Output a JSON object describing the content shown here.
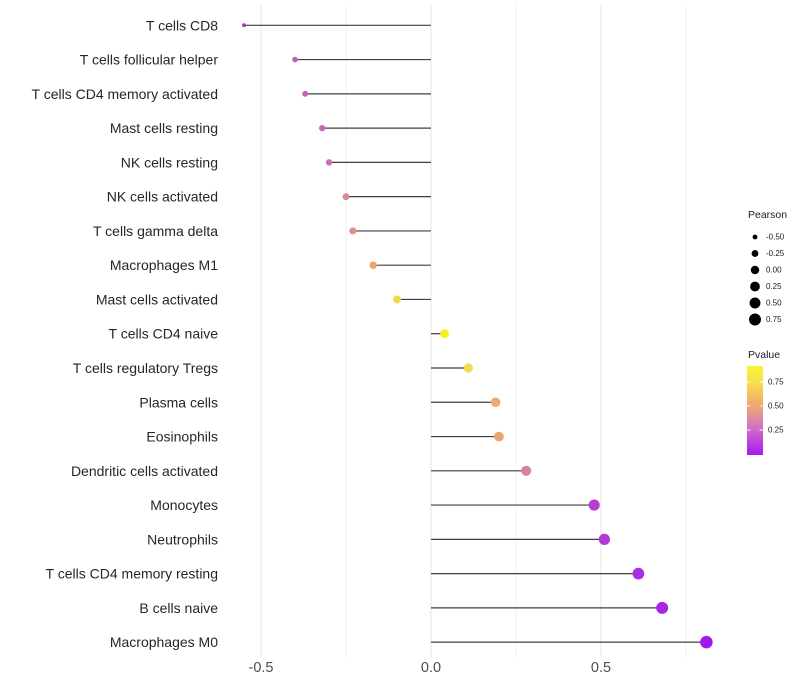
{
  "chart_data": {
    "type": "lollipop",
    "title": "",
    "xlabel": "",
    "ylabel": "",
    "xlim": [
      -0.65,
      0.92
    ],
    "grid": true,
    "gridline_values": [
      -0.5,
      -0.25,
      0.0,
      0.25,
      0.5,
      0.75
    ],
    "x_axis": {
      "tick_values": [
        -0.5,
        0.0,
        0.5
      ],
      "tick_labels": [
        "-0.5",
        "0.0",
        "0.5"
      ]
    },
    "categories": [
      "T cells CD8",
      "T cells follicular helper",
      "T cells CD4 memory activated",
      "Mast cells resting",
      "NK cells resting",
      "NK cells activated",
      "T cells gamma delta",
      "Macrophages M1",
      "Mast cells activated",
      "T cells CD4 naive",
      "T cells regulatory  Tregs",
      "Plasma cells",
      "Eosinophils",
      "Dendritic cells activated",
      "Monocytes",
      "Neutrophils",
      "T cells CD4 memory resting",
      "B cells naive",
      "Macrophages M0"
    ],
    "series": [
      {
        "name": "Pearson",
        "values": [
          -0.55,
          -0.4,
          -0.37,
          -0.32,
          -0.3,
          -0.25,
          -0.23,
          -0.17,
          -0.1,
          0.04,
          0.11,
          0.19,
          0.2,
          0.28,
          0.48,
          0.51,
          0.61,
          0.68,
          0.81
        ]
      }
    ],
    "points": [
      {
        "label": "T cells CD8",
        "pearson": -0.55,
        "dot_color": "#9c44c0"
      },
      {
        "label": "T cells follicular helper",
        "pearson": -0.4,
        "dot_color": "#c05dc3"
      },
      {
        "label": "T cells CD4 memory activated",
        "pearson": -0.37,
        "dot_color": "#c562bc"
      },
      {
        "label": "Mast cells resting",
        "pearson": -0.32,
        "dot_color": "#ca68b6"
      },
      {
        "label": "NK cells resting",
        "pearson": -0.3,
        "dot_color": "#cd70ae"
      },
      {
        "label": "NK cells activated",
        "pearson": -0.25,
        "dot_color": "#dc8b93"
      },
      {
        "label": "T cells gamma delta",
        "pearson": -0.23,
        "dot_color": "#df8e88"
      },
      {
        "label": "Macrophages M1",
        "pearson": -0.17,
        "dot_color": "#e7a96a"
      },
      {
        "label": "Mast cells activated",
        "pearson": -0.1,
        "dot_color": "#edda4d"
      },
      {
        "label": "T cells CD4 naive",
        "pearson": 0.04,
        "dot_color": "#f7f018"
      },
      {
        "label": "T cells regulatory  Tregs",
        "pearson": 0.11,
        "dot_color": "#f0dc4e"
      },
      {
        "label": "Plasma cells",
        "pearson": 0.19,
        "dot_color": "#eaab76"
      },
      {
        "label": "Eosinophils",
        "pearson": 0.2,
        "dot_color": "#e7a470"
      },
      {
        "label": "Dendritic cells activated",
        "pearson": 0.28,
        "dot_color": "#d8829e"
      },
      {
        "label": "Monocytes",
        "pearson": 0.48,
        "dot_color": "#b63ed2"
      },
      {
        "label": "Neutrophils",
        "pearson": 0.51,
        "dot_color": "#b138d7"
      },
      {
        "label": "T cells CD4 memory resting",
        "pearson": 0.61,
        "dot_color": "#aa2de0"
      },
      {
        "label": "B cells naive",
        "pearson": 0.68,
        "dot_color": "#a527e3"
      },
      {
        "label": "Macrophages M0",
        "pearson": 0.81,
        "dot_color": "#a11ae9"
      }
    ],
    "legend_size": {
      "title": "Pearson",
      "position": "right",
      "entries": [
        {
          "label": "-0.50",
          "value": -0.5
        },
        {
          "label": "-0.25",
          "value": -0.25
        },
        {
          "label": "0.00",
          "value": 0.0
        },
        {
          "label": "0.25",
          "value": 0.25
        },
        {
          "label": "0.50",
          "value": 0.5
        },
        {
          "label": "0.75",
          "value": 0.75
        }
      ],
      "dot_color": "#000000"
    },
    "legend_color": {
      "title": "Pvalue",
      "position": "right",
      "tick_labels": [
        "0.75",
        "0.50",
        "0.25"
      ],
      "tick_values": [
        0.75,
        0.5,
        0.25
      ],
      "bar_range": [
        0.92,
        0.0
      ],
      "gradient_top_to_bottom": [
        {
          "offset": 0.0,
          "color": "#FCF536"
        },
        {
          "offset": 0.2,
          "color": "#F7DC4C"
        },
        {
          "offset": 0.4,
          "color": "#F0B169"
        },
        {
          "offset": 0.55,
          "color": "#E49292"
        },
        {
          "offset": 0.7,
          "color": "#D26FC4"
        },
        {
          "offset": 0.85,
          "color": "#BC43DF"
        },
        {
          "offset": 1.0,
          "color": "#A816F0"
        }
      ]
    },
    "colors": {
      "background": "#ffffff",
      "stem": "#3f3f3f",
      "gridline_major": "#e4e4e4",
      "gridline_minor": "#f0f0f0",
      "y_label_text": "#262626",
      "x_tick_text": "#4d4d4d",
      "legend_text": "#1a1a1a"
    }
  }
}
